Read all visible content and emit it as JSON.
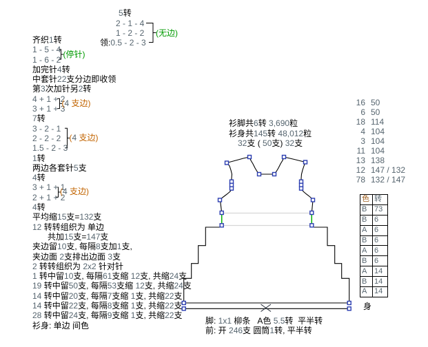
{
  "colors": {
    "k": "#000000",
    "n": "#56656f",
    "g": "#009a00",
    "o": "#c26400",
    "oh": "#a06020",
    "marker": "#2a3cb0",
    "outline": "#000000",
    "waist_green": "#00b400",
    "gray_line": "#d6d6d6"
  },
  "top_block": {
    "lines": [
      {
        "parts": [
          {
            "t": "5",
            "c": "n"
          },
          {
            "t": "转",
            "c": "k"
          }
        ]
      },
      {
        "parts": [
          {
            "t": "2 - 1 - 4",
            "c": "n"
          }
        ]
      },
      {
        "parts": [
          {
            "t": "1 - 2 - 2",
            "c": "n"
          }
        ]
      },
      {
        "parts": [
          {
            "t": "领:",
            "c": "k"
          },
          {
            "t": "0.5 - 2 - 3",
            "c": "n"
          }
        ]
      }
    ]
  },
  "annotations": {
    "wu_bian": {
      "parts": [
        {
          "t": "(无边)",
          "c": "g"
        }
      ]
    },
    "ting_zhen": {
      "parts": [
        {
          "t": "(停针)",
          "c": "g"
        }
      ]
    },
    "zhi_bian": {
      "parts": [
        {
          "t": "(",
          "c": "o"
        },
        {
          "t": "4",
          "c": "n"
        },
        {
          "t": " 支边)",
          "c": "o"
        }
      ]
    }
  },
  "left_lines": [
    {
      "parts": [
        {
          "t": "齐织",
          "c": "k"
        },
        {
          "t": "1",
          "c": "n"
        },
        {
          "t": "转",
          "c": "k"
        }
      ]
    },
    {
      "parts": [
        {
          "t": "1 - 5 - 4",
          "c": "n"
        }
      ]
    },
    {
      "parts": [
        {
          "t": "1 - 6 - 2",
          "c": "n"
        }
      ]
    },
    {
      "parts": [
        {
          "t": "加完针",
          "c": "k"
        },
        {
          "t": "4",
          "c": "n"
        },
        {
          "t": "转",
          "c": "k"
        }
      ]
    },
    {
      "parts": [
        {
          "t": "中套针",
          "c": "k"
        },
        {
          "t": "22",
          "c": "n"
        },
        {
          "t": "支分边即收领",
          "c": "k"
        }
      ]
    },
    {
      "parts": [
        {
          "t": "第",
          "c": "k"
        },
        {
          "t": "3",
          "c": "n"
        },
        {
          "t": "次加针另",
          "c": "k"
        },
        {
          "t": "2",
          "c": "n"
        },
        {
          "t": "转",
          "c": "k"
        }
      ]
    },
    {
      "parts": [
        {
          "t": "4 + 1 + 2",
          "c": "n"
        }
      ]
    },
    {
      "parts": [
        {
          "t": "3 + 1 + 3",
          "c": "n"
        }
      ]
    },
    {
      "parts": [
        {
          "t": "7",
          "c": "n"
        },
        {
          "t": "转",
          "c": "k"
        }
      ]
    },
    {
      "parts": [
        {
          "t": "3 - 2 - 1",
          "c": "n"
        }
      ]
    },
    {
      "parts": [
        {
          "t": "2 - 2 - 2",
          "c": "n"
        }
      ]
    },
    {
      "parts": [
        {
          "t": "1.5 - 2 - 3",
          "c": "n"
        }
      ]
    },
    {
      "parts": [
        {
          "t": "1",
          "c": "n"
        },
        {
          "t": "转",
          "c": "k"
        }
      ]
    },
    {
      "parts": [
        {
          "t": "两边各套针",
          "c": "k"
        },
        {
          "t": "5",
          "c": "n"
        },
        {
          "t": "支",
          "c": "k"
        }
      ]
    },
    {
      "parts": [
        {
          "t": "4",
          "c": "n"
        },
        {
          "t": "转",
          "c": "k"
        }
      ]
    },
    {
      "parts": [
        {
          "t": "3 + 1 + 1",
          "c": "n"
        }
      ]
    },
    {
      "parts": [
        {
          "t": "2 + 1 + 2",
          "c": "n"
        }
      ]
    },
    {
      "parts": [
        {
          "t": "4",
          "c": "n"
        },
        {
          "t": "转",
          "c": "k"
        }
      ]
    },
    {
      "parts": [
        {
          "t": "平均缩",
          "c": "k"
        },
        {
          "t": "15",
          "c": "n"
        },
        {
          "t": "支=",
          "c": "k"
        },
        {
          "t": "132",
          "c": "n"
        },
        {
          "t": "支",
          "c": "k"
        }
      ]
    },
    {
      "parts": [
        {
          "t": "12",
          "c": "n"
        },
        {
          "t": " 转转组织为 单边",
          "c": "k"
        }
      ]
    },
    {
      "indent": 22,
      "parts": [
        {
          "t": "共加",
          "c": "k"
        },
        {
          "t": "15",
          "c": "n"
        },
        {
          "t": "支=",
          "c": "k"
        },
        {
          "t": "147",
          "c": "n"
        },
        {
          "t": "支",
          "c": "k"
        }
      ]
    },
    {
      "parts": [
        {
          "t": "夹边留",
          "c": "k"
        },
        {
          "t": "10",
          "c": "n"
        },
        {
          "t": "支, 每隔",
          "c": "k"
        },
        {
          "t": "8",
          "c": "n"
        },
        {
          "t": "支加",
          "c": "k"
        },
        {
          "t": "1",
          "c": "n"
        },
        {
          "t": "支,",
          "c": "k"
        }
      ]
    },
    {
      "parts": [
        {
          "t": "夹边面 ",
          "c": "k"
        },
        {
          "t": "2",
          "c": "n"
        },
        {
          "t": "支排出边面 ",
          "c": "k"
        },
        {
          "t": "3",
          "c": "n"
        },
        {
          "t": "支",
          "c": "k"
        }
      ]
    },
    {
      "parts": [
        {
          "t": "2",
          "c": "n"
        },
        {
          "t": " 转转组织为 ",
          "c": "k"
        },
        {
          "t": "2x2",
          "c": "n"
        },
        {
          "t": " 针对针",
          "c": "k"
        }
      ]
    },
    {
      "parts": [
        {
          "t": "1",
          "c": "n"
        },
        {
          "t": " 转中留",
          "c": "k"
        },
        {
          "t": "10",
          "c": "n"
        },
        {
          "t": "支, 每隔",
          "c": "k"
        },
        {
          "t": "61",
          "c": "n"
        },
        {
          "t": "支缩 ",
          "c": "k"
        },
        {
          "t": "12",
          "c": "n"
        },
        {
          "t": "支, 共缩",
          "c": "k"
        },
        {
          "t": "24",
          "c": "n"
        },
        {
          "t": "支",
          "c": "k"
        }
      ]
    },
    {
      "parts": [
        {
          "t": "19",
          "c": "n"
        },
        {
          "t": " 转中留",
          "c": "k"
        },
        {
          "t": "50",
          "c": "n"
        },
        {
          "t": "支, 每隔",
          "c": "k"
        },
        {
          "t": "53",
          "c": "n"
        },
        {
          "t": "支缩 ",
          "c": "k"
        },
        {
          "t": "12",
          "c": "n"
        },
        {
          "t": "支, 共缩",
          "c": "k"
        },
        {
          "t": "24",
          "c": "n"
        },
        {
          "t": "支",
          "c": "k"
        }
      ]
    },
    {
      "parts": [
        {
          "t": "14",
          "c": "n"
        },
        {
          "t": " 转中留",
          "c": "k"
        },
        {
          "t": "20",
          "c": "n"
        },
        {
          "t": "支, 每隔",
          "c": "k"
        },
        {
          "t": "7",
          "c": "n"
        },
        {
          "t": "支缩 ",
          "c": "k"
        },
        {
          "t": "1",
          "c": "n"
        },
        {
          "t": "支, 共缩",
          "c": "k"
        },
        {
          "t": "22",
          "c": "n"
        },
        {
          "t": "支",
          "c": "k"
        }
      ]
    },
    {
      "parts": [
        {
          "t": "14",
          "c": "n"
        },
        {
          "t": " 转中留",
          "c": "k"
        },
        {
          "t": "22",
          "c": "n"
        },
        {
          "t": "支, 每隔",
          "c": "k"
        },
        {
          "t": "8",
          "c": "n"
        },
        {
          "t": "支缩 ",
          "c": "k"
        },
        {
          "t": "1",
          "c": "n"
        },
        {
          "t": "支, 共缩",
          "c": "k"
        },
        {
          "t": "22",
          "c": "n"
        },
        {
          "t": "支",
          "c": "k"
        }
      ]
    },
    {
      "parts": [
        {
          "t": "28",
          "c": "n"
        },
        {
          "t": " 转中留",
          "c": "k"
        },
        {
          "t": "24",
          "c": "n"
        },
        {
          "t": "支, 每隔",
          "c": "k"
        },
        {
          "t": "9",
          "c": "n"
        },
        {
          "t": "支缩 ",
          "c": "k"
        },
        {
          "t": "1",
          "c": "n"
        },
        {
          "t": "支, 共缩",
          "c": "k"
        },
        {
          "t": "22",
          "c": "n"
        },
        {
          "t": "支",
          "c": "k"
        }
      ]
    },
    {
      "parts": [
        {
          "t": "衫身: 单边 间色",
          "c": "k"
        }
      ]
    }
  ],
  "stats": {
    "lines": [
      {
        "parts": [
          {
            "t": "衫脚共",
            "c": "k"
          },
          {
            "t": "6",
            "c": "n"
          },
          {
            "t": "转 ",
            "c": "k"
          },
          {
            "t": "3,690",
            "c": "n"
          },
          {
            "t": "粒",
            "c": "k"
          }
        ]
      },
      {
        "parts": [
          {
            "t": "衫身共",
            "c": "k"
          },
          {
            "t": "145",
            "c": "n"
          },
          {
            "t": "转 ",
            "c": "k"
          },
          {
            "t": "48,012",
            "c": "n"
          },
          {
            "t": "粒",
            "c": "k"
          }
        ]
      },
      {
        "parts": [
          {
            "t": "32",
            "c": "n"
          },
          {
            "t": "支 ( ",
            "c": "k"
          },
          {
            "t": "50",
            "c": "n"
          },
          {
            "t": "支) ",
            "c": "k"
          },
          {
            "t": "32",
            "c": "n"
          },
          {
            "t": "支",
            "c": "k"
          }
        ]
      }
    ]
  },
  "right_counts": {
    "rows": [
      [
        "16",
        "50"
      ],
      [
        "6",
        "50"
      ],
      [
        "18",
        "114"
      ],
      [
        "4",
        "104"
      ],
      [
        "3",
        "104"
      ],
      [
        "11",
        "104"
      ],
      [
        "13",
        "138"
      ],
      [
        "12",
        "147 / 132"
      ],
      [
        "78",
        "132 / 147"
      ]
    ]
  },
  "color_table": {
    "headers": [
      "色",
      "转"
    ],
    "rows": [
      [
        "B",
        "73"
      ],
      [
        "B",
        "6"
      ],
      [
        "A",
        "6"
      ],
      [
        "B",
        "6"
      ],
      [
        "A",
        "6"
      ],
      [
        "B",
        "6"
      ],
      [
        "A",
        "14"
      ],
      [
        "B",
        "14"
      ],
      [
        "A",
        "14"
      ]
    ],
    "footer": "身"
  },
  "footer": {
    "lines": [
      {
        "parts": [
          {
            "t": "脚: ",
            "c": "k"
          },
          {
            "t": "1x1",
            "c": "n"
          },
          {
            "t": " 柳条   A色 ",
            "c": "k"
          },
          {
            "t": "5.5",
            "c": "n"
          },
          {
            "t": "转  平半转",
            "c": "k"
          }
        ]
      },
      {
        "parts": [
          {
            "t": "前: 开 ",
            "c": "k"
          },
          {
            "t": "246",
            "c": "n"
          },
          {
            "t": "支 圆筒",
            "c": "k"
          },
          {
            "t": "1",
            "c": "n"
          },
          {
            "t": "转, 平半转",
            "c": "k"
          }
        ]
      }
    ]
  }
}
